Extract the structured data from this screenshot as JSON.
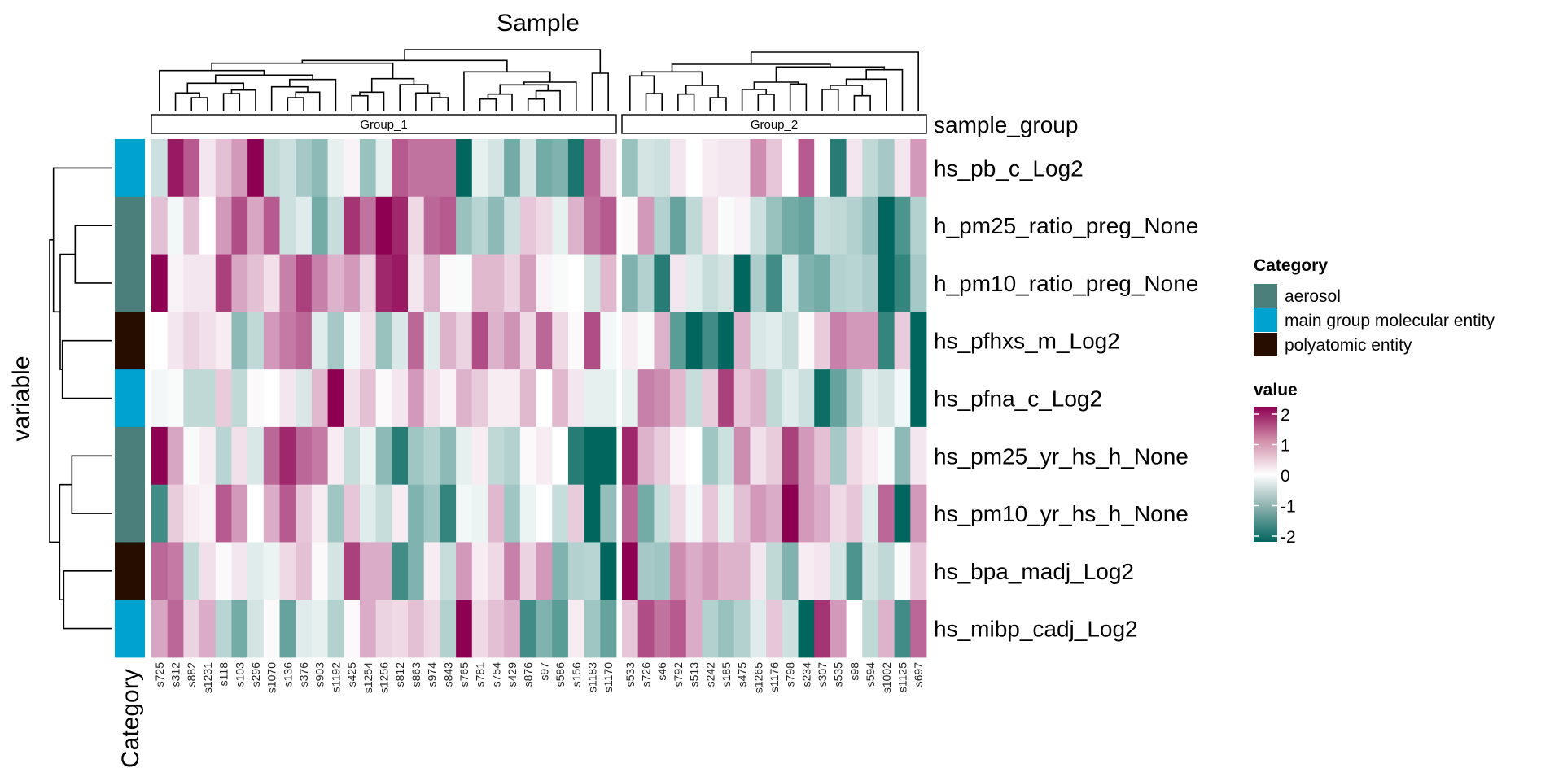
{
  "chart_data": {
    "type": "heatmap",
    "title": "Sample",
    "xlabel": "Sample",
    "ylabel": "variable",
    "column_annotation_label": "sample_group",
    "row_annotation_label": "Category",
    "groups": [
      {
        "name": "Group_1",
        "columns": [
          "s725",
          "s312",
          "s882",
          "s1231",
          "s118",
          "s103",
          "s296",
          "s1070",
          "s136",
          "s376",
          "s903",
          "s1192",
          "s425",
          "s1254",
          "s1256",
          "s812",
          "s863",
          "s974",
          "s843",
          "s765",
          "s781",
          "s754",
          "s429",
          "s876",
          "s97",
          "s586",
          "s156",
          "s1183",
          "s1170"
        ]
      },
      {
        "name": "Group_2",
        "columns": [
          "s533",
          "s726",
          "s46",
          "s792",
          "s513",
          "s242",
          "s185",
          "s475",
          "s1265",
          "s1176",
          "s798",
          "s234",
          "s307",
          "s535",
          "s98",
          "s594",
          "s1002",
          "s1125",
          "s697"
        ]
      }
    ],
    "rows": [
      {
        "name": "hs_pb_c_Log2",
        "category": "main group molecular entity",
        "values": [
          -0.4,
          1.8,
          1.3,
          0.2,
          0.5,
          0.8,
          2,
          -0.5,
          -0.4,
          -0.7,
          -0.9,
          -0.2,
          0.1,
          -0.8,
          -0.2,
          1.3,
          1.1,
          1.1,
          1.1,
          -2,
          -0.2,
          -0.35,
          -1.1,
          -0.35,
          -1.1,
          -1.0,
          -1.8,
          1.2,
          0.35,
          -0.8,
          -0.35,
          -0.4,
          0.2,
          0,
          0.15,
          0.2,
          0.2,
          0.9,
          0.45,
          0,
          1.3,
          0,
          -1.7,
          0.2,
          -0.5,
          -0.7,
          0.2,
          0.8
        ]
      },
      {
        "name": "h_pm25_ratio_preg_None",
        "category": "aerosol",
        "values": [
          0.5,
          -0.1,
          0.5,
          0,
          0.8,
          1.4,
          0.7,
          1.3,
          -0.4,
          -0.25,
          -1.1,
          -0.45,
          1.6,
          1.1,
          2,
          1.7,
          0.3,
          1.2,
          1.3,
          -0.8,
          -0.55,
          -0.9,
          -0.4,
          0.45,
          0.3,
          -0.2,
          0.6,
          1.1,
          1.3,
          0.05,
          0.8,
          -0.6,
          -1.2,
          -0.5,
          0.25,
          -0.05,
          0.1,
          -0.4,
          -0.8,
          -1.1,
          -1.2,
          -0.45,
          -0.5,
          -0.6,
          -0.85,
          -2,
          -1.4,
          -0.6
        ]
      },
      {
        "name": "h_pm10_ratio_preg_None",
        "category": "aerosol",
        "values": [
          2,
          0.1,
          0.2,
          0.2,
          1.5,
          0.7,
          0.5,
          0.25,
          1.0,
          1.5,
          1.0,
          0.6,
          0.8,
          0.35,
          1.7,
          1.8,
          0.2,
          0.6,
          0.05,
          -0.05,
          0.55,
          0.55,
          0.35,
          0.75,
          0.1,
          -0.05,
          0,
          -0.35,
          0.55,
          -1.0,
          -0.6,
          -1.7,
          0.2,
          -0.25,
          -0.45,
          -0.35,
          -2,
          -0.65,
          -1.5,
          -0.3,
          -1.0,
          -1.1,
          -0.6,
          -0.55,
          -0.65,
          -2,
          -1.6,
          -0.7
        ]
      },
      {
        "name": "hs_pfhxs_m_Log2",
        "category": "polyatomic entity",
        "values": [
          0,
          0.2,
          0.35,
          0.25,
          0.15,
          -0.9,
          -0.5,
          0.8,
          1.05,
          1.2,
          -0.25,
          -0.7,
          -0.1,
          0.25,
          -0.8,
          -0.3,
          1.2,
          -0.25,
          0.6,
          0.35,
          1.4,
          0.6,
          0.85,
          0.3,
          1.2,
          0.3,
          0.05,
          1.4,
          -0.1,
          0.15,
          -0.05,
          0.6,
          -1.3,
          -2,
          -1.5,
          -2,
          0.6,
          -0.3,
          -0.25,
          -0.45,
          0.05,
          0.4,
          1.0,
          0.8,
          0.8,
          -1.6,
          0.4,
          -2
        ]
      },
      {
        "name": "hs_pfna_c_Log2",
        "category": "main group molecular entity",
        "values": [
          -0.1,
          -0.05,
          -0.5,
          -0.5,
          0.4,
          -0.5,
          0.05,
          0,
          0.2,
          -0.3,
          0.55,
          2,
          0.25,
          0.5,
          0.05,
          0.2,
          0.8,
          0.25,
          0.1,
          0.6,
          0.4,
          0.15,
          0.15,
          0.55,
          0,
          0.55,
          0.2,
          -0.2,
          -0.2,
          -0.2,
          1.0,
          0.9,
          0.55,
          -0.45,
          0.4,
          1.5,
          0.45,
          0.6,
          -0.5,
          -0.25,
          -0.4,
          -1.9,
          -1.2,
          -0.6,
          -0.25,
          -0.35,
          -0.1,
          -2
        ]
      },
      {
        "name": "hs_pm25_yr_hs_h_None",
        "category": "aerosol",
        "values": [
          2,
          0.7,
          -0.05,
          0.15,
          -0.55,
          0.25,
          -0.3,
          1.2,
          1.7,
          1.2,
          1.05,
          0.15,
          -0.45,
          -0.15,
          -0.9,
          -1.7,
          -0.75,
          -0.6,
          -0.9,
          -0.2,
          0.15,
          -0.5,
          -0.6,
          0.05,
          0.15,
          0,
          -1.7,
          -2,
          -2,
          1.7,
          0.6,
          0.4,
          0.1,
          0,
          -0.75,
          -0.4,
          0.9,
          0.25,
          0.4,
          1.5,
          0.8,
          0.5,
          -0.7,
          0.3,
          0.15,
          -0.05,
          -0.9,
          0.2
        ]
      },
      {
        "name": "hs_pm10_yr_hs_h_None",
        "category": "aerosol",
        "values": [
          -1.5,
          0.4,
          0.15,
          0.1,
          1.3,
          0.8,
          0,
          0.65,
          1.3,
          0.45,
          0.15,
          -0.75,
          0.45,
          -0.25,
          -0.45,
          0.15,
          -1.0,
          -0.75,
          -1.6,
          -0.1,
          -0.15,
          0.55,
          -0.75,
          -0.15,
          0,
          -0.45,
          0.4,
          -2,
          -0.85,
          1.2,
          -1.1,
          -0.45,
          0.3,
          -0.1,
          0.45,
          -0.2,
          0.5,
          0.8,
          0.65,
          2,
          0.8,
          0.65,
          0.3,
          0.45,
          -0.25,
          1.2,
          -2,
          0.8
        ]
      },
      {
        "name": "hs_bpa_madj_Log2",
        "category": "polyatomic entity",
        "values": [
          1.2,
          1.05,
          -0.5,
          0.25,
          0.05,
          0.2,
          -0.25,
          -0.15,
          0.3,
          0.5,
          0.05,
          -0.35,
          1.5,
          0.65,
          0.65,
          -1.5,
          -1.0,
          0.15,
          -0.45,
          0.8,
          0.15,
          0.3,
          1.0,
          0.35,
          0.8,
          -1.0,
          -0.6,
          -0.55,
          -2,
          2,
          -0.7,
          -0.75,
          0.9,
          0.65,
          0.8,
          0.6,
          0.6,
          0.2,
          -0.5,
          -1.0,
          0.15,
          0.2,
          -0.35,
          -1.4,
          -0.35,
          -0.5,
          -0.05,
          0.45
        ]
      },
      {
        "name": "hs_mibp_cadj_Log2",
        "category": "main group molecular entity",
        "values": [
          0.7,
          1.2,
          0.35,
          0.65,
          -0.55,
          -1.1,
          -0.35,
          0.05,
          -1.2,
          -0.25,
          -0.2,
          -0.6,
          0.05,
          0.65,
          0.35,
          0.3,
          0.5,
          0.3,
          -0.6,
          2,
          0.3,
          0.5,
          0.65,
          -1.5,
          -1.0,
          -1.3,
          0.15,
          -0.75,
          -1.2,
          0.45,
          1.4,
          1.1,
          1.3,
          0.65,
          -0.6,
          -0.8,
          -0.6,
          -0.25,
          0.45,
          -0.4,
          -2,
          1.6,
          0.8,
          0,
          -0.5,
          0.6,
          -1.5,
          1.2
        ]
      }
    ],
    "category_legend": {
      "title": "Category",
      "items": [
        {
          "label": "aerosol",
          "color": "#4a7f7c"
        },
        {
          "label": "main group molecular entity",
          "color": "#00a3d0"
        },
        {
          "label": "polyatomic entity",
          "color": "#260d00"
        }
      ]
    },
    "value_legend": {
      "title": "value",
      "range": [
        -2,
        2
      ],
      "ticks": [
        "2",
        "1",
        "0",
        "-1",
        "-2"
      ],
      "tick_values": [
        2,
        1,
        0,
        -1,
        -2
      ],
      "colors": {
        "low": "#01665e",
        "mid": "#ffffff",
        "high": "#8e0152"
      }
    },
    "grid": false,
    "legend_placement": "right"
  }
}
